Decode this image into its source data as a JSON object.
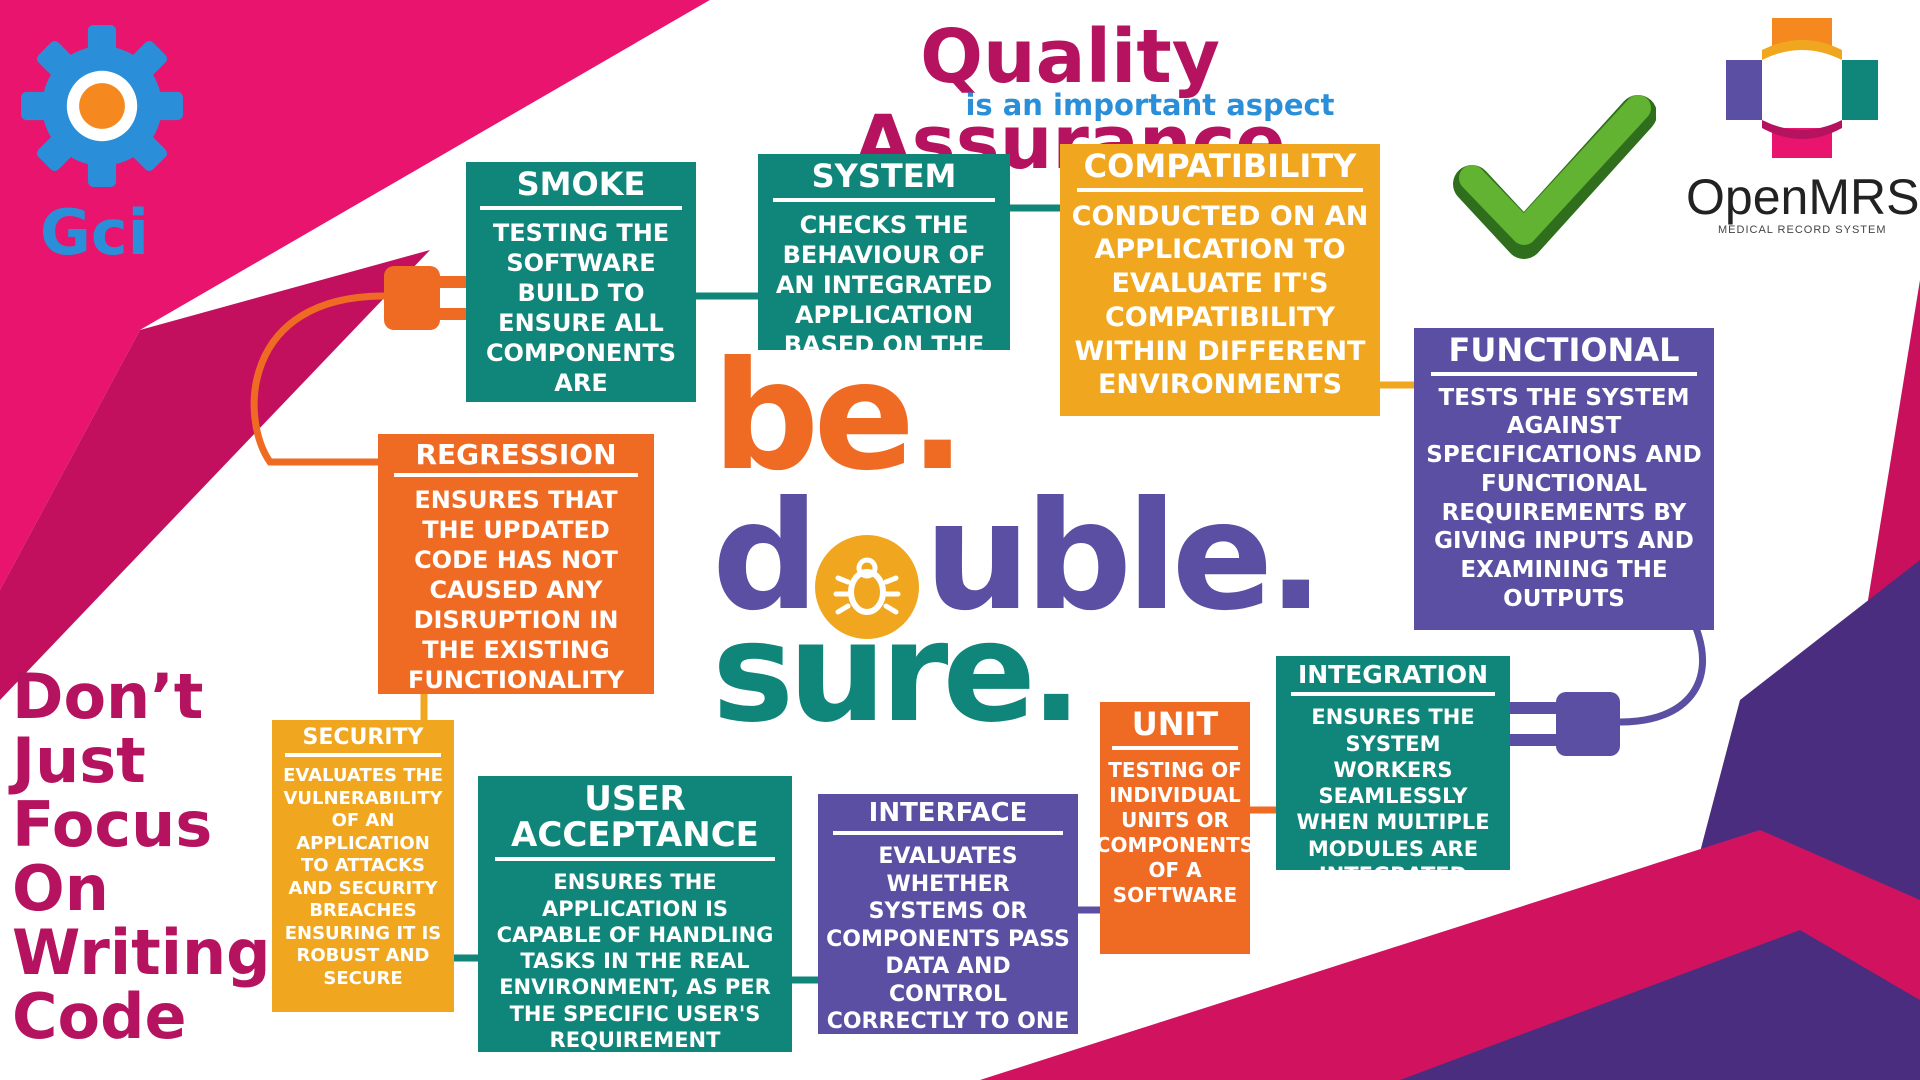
{
  "header": {
    "title": "Quality Assurance",
    "subtitle": "is an important aspect"
  },
  "logos": {
    "gci": "Gci",
    "openmrs": "OpenMRS",
    "openmrs_tagline": "MEDICAL RECORD SYSTEM"
  },
  "slogan": {
    "line1": "be.",
    "line2_a": "d",
    "line2_b": "uble.",
    "line3": "sure."
  },
  "side_message": [
    "Don’t",
    "Just",
    "Focus",
    "On",
    "Writing",
    "Code"
  ],
  "testing_types": {
    "smoke": {
      "title": "SMOKE",
      "desc": "TESTING THE SOFTWARE BUILD TO ENSURE ALL COMPONENTS ARE FUNCTIONING PROPERLY"
    },
    "system": {
      "title": "SYSTEM",
      "desc": "CHECKS THE BEHAVIOUR OF AN INTEGRATED APPLICATION BASED ON THE SRS DOCUMENT"
    },
    "compatibility": {
      "title": "COMPATIBILITY",
      "desc": "CONDUCTED ON AN APPLICATION TO EVALUATE IT'S COMPATIBILITY WITHIN DIFFERENT ENVIRONMENTS"
    },
    "functional": {
      "title": "FUNCTIONAL",
      "desc": "TESTS THE SYSTEM AGAINST SPECIFICATIONS AND FUNCTIONAL REQUIREMENTS BY GIVING INPUTS AND EXAMINING THE OUTPUTS"
    },
    "regression": {
      "title": "REGRESSION",
      "desc": "ENSURES THAT THE UPDATED CODE HAS NOT CAUSED ANY DISRUPTION IN THE EXISTING FUNCTIONALITY"
    },
    "integration": {
      "title": "INTEGRATION",
      "desc": "ENSURES THE SYSTEM WORKERS SEAMLESSLY WHEN MULTIPLE MODULES ARE INTEGRATED"
    },
    "unit": {
      "title": "UNIT",
      "desc": "TESTING OF INDIVIDUAL UNITS OR COMPONENTS OF A SOFTWARE"
    },
    "interface": {
      "title": "INTERFACE",
      "desc": "EVALUATES WHETHER SYSTEMS OR COMPONENTS PASS DATA AND CONTROL CORRECTLY TO ONE ANOTHER"
    },
    "user_acceptance": {
      "title": "USER ACCEPTANCE",
      "desc": "ENSURES THE APPLICATION IS CAPABLE OF HANDLING TASKS IN THE REAL ENVIRONMENT, AS PER THE SPECIFIC USER'S REQUIREMENT"
    },
    "security": {
      "title": "SECURITY",
      "desc": "EVALUATES THE VULNERABILITY OF AN APPLICATION TO ATTACKS AND SECURITY BREACHES ENSURING IT IS ROBUST AND SECURE"
    }
  },
  "colors": {
    "magenta": "#b5135f",
    "pink": "#e8146e",
    "teal": "#10857a",
    "orange": "#ef6b24",
    "yellow": "#f0a71f",
    "purple": "#5a4fa3",
    "blue": "#2a8fd8",
    "green": "#4f9f2a"
  },
  "icons": [
    "gear-icon",
    "checkmark-icon",
    "openmrs-cross-icon",
    "bug-icon",
    "plug-icon"
  ]
}
